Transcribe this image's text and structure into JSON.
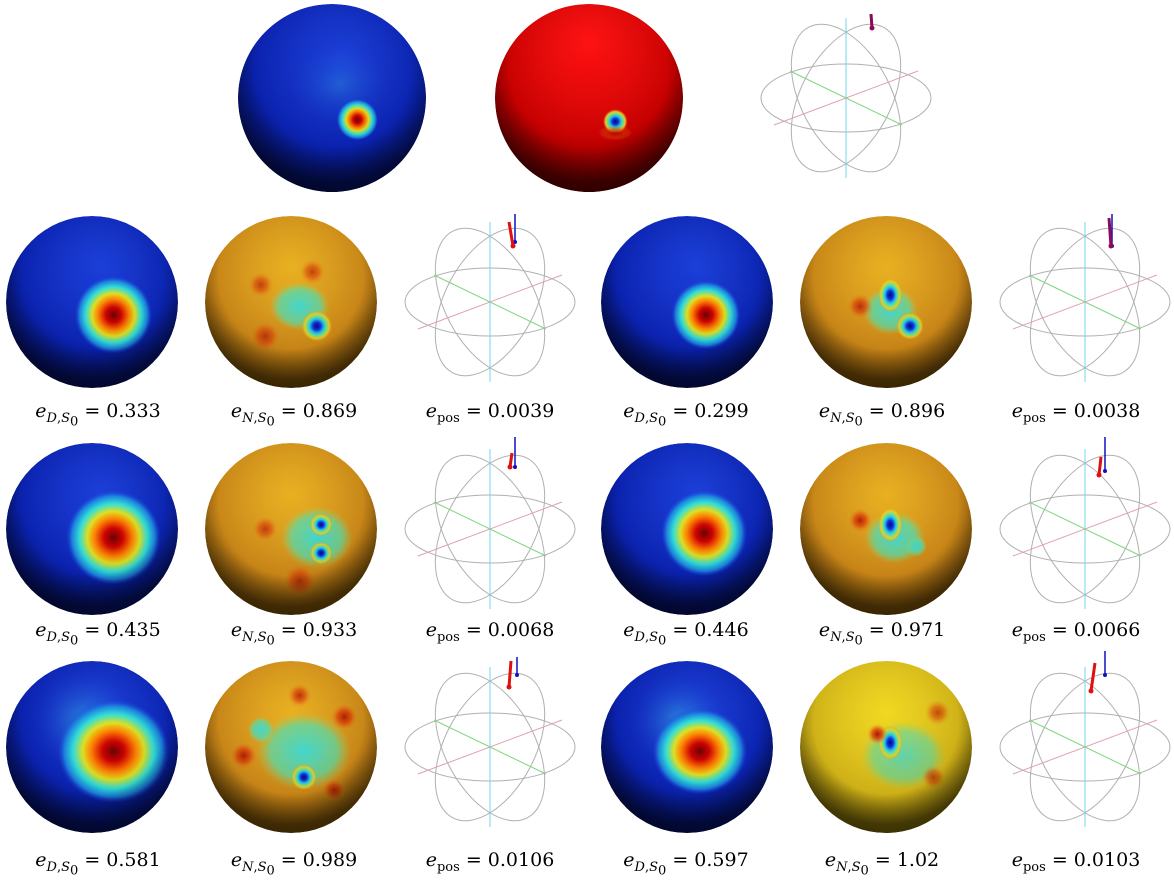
{
  "top_row": {
    "panels": [
      "dirichlet-sphere",
      "neumann-sphere",
      "position-wireframe"
    ]
  },
  "rows": [
    {
      "left": {
        "d_value": "0.333",
        "n_value": "0.869",
        "pos_value": "0.0039"
      },
      "right": {
        "d_value": "0.299",
        "n_value": "0.896",
        "pos_value": "0.0038"
      }
    },
    {
      "left": {
        "d_value": "0.435",
        "n_value": "0.933",
        "pos_value": "0.0068"
      },
      "right": {
        "d_value": "0.446",
        "n_value": "0.971",
        "pos_value": "0.0066"
      }
    },
    {
      "left": {
        "d_value": "0.581",
        "n_value": "0.989",
        "pos_value": "0.0106"
      },
      "right": {
        "d_value": "0.597",
        "n_value": "1.02",
        "pos_value": "0.0103"
      }
    }
  ],
  "labels": {
    "e": "e",
    "D": "D",
    "N": "N",
    "S": "S",
    "zero": "0",
    "pos": "pos",
    "equals": " = ",
    "comma": ","
  },
  "colors": {
    "jet_blue": "#0b1fb0",
    "jet_dark_blue": "#000a5c",
    "jet_cyan": "#2fd6e0",
    "jet_yellow": "#e8d21a",
    "jet_red": "#c00000",
    "neumann_orange": "#d99a1a",
    "true_source": "#1010c0",
    "estimated_source": "#e01010",
    "axis_x": "#7fd67f",
    "axis_y": "#e0a0b0",
    "axis_z": "#70d8e8",
    "wire": "#b0b0b0"
  }
}
